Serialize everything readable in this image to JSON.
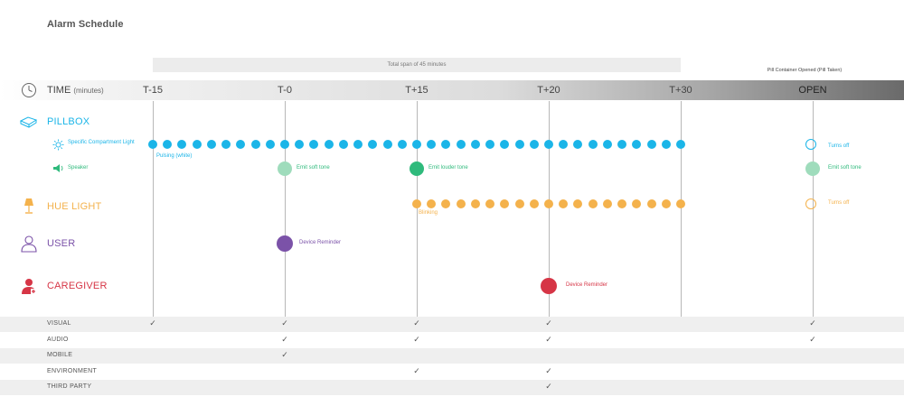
{
  "title": "Alarm Schedule",
  "span_label": "Total span of 45 minutes",
  "open_note": "Pill Container Opened (Pill Taken)",
  "time_axis": {
    "label": "TIME",
    "unit": "(minutes)",
    "ticks": [
      "T-15",
      "T-0",
      "T+15",
      "T+20",
      "T+30",
      "OPEN"
    ]
  },
  "colors": {
    "pillbox": "#1bb5e8",
    "speaker": "#2fba7c",
    "hue": "#f4b24c",
    "user": "#7b52a8",
    "caregiver": "#d63546",
    "grid": "#b8b8b8"
  },
  "rows": {
    "pillbox": {
      "label": "PILLBOX",
      "icon": "pillbox-icon",
      "light_label": "Specific Compartment Light",
      "light_icon": "light-icon",
      "speaker_label": "Speaker",
      "speaker_icon": "speaker-icon"
    },
    "hue": {
      "label": "HUE LIGHT",
      "icon": "lamp-icon"
    },
    "user": {
      "label": "USER",
      "icon": "user-icon"
    },
    "caregiver": {
      "label": "CAREGIVER",
      "icon": "caregiver-icon"
    }
  },
  "annotations": {
    "light_pulsing": "Pulsing (white)",
    "light_turns_off": "Turns off",
    "speaker_soft": "Emit soft tone",
    "speaker_louder": "Emit louder tone",
    "speaker_open_soft": "Emit soft tone",
    "hue_blinking": "Blinking",
    "hue_turns_off": "Turns off",
    "user_reminder": "Device Reminder",
    "caregiver_reminder": "Device Reminder"
  },
  "channel_table": {
    "rows": [
      {
        "label": "VISUAL",
        "checks": [
          true,
          true,
          true,
          true,
          false,
          true
        ]
      },
      {
        "label": "AUDIO",
        "checks": [
          false,
          true,
          true,
          true,
          false,
          true
        ]
      },
      {
        "label": "MOBILE",
        "checks": [
          false,
          true,
          false,
          false,
          false,
          false
        ]
      },
      {
        "label": "ENVIRONMENT",
        "checks": [
          false,
          false,
          true,
          true,
          false,
          false
        ]
      },
      {
        "label": "THIRD PARTY",
        "checks": [
          false,
          false,
          false,
          true,
          false,
          false
        ]
      }
    ],
    "check_glyph": "✓"
  }
}
